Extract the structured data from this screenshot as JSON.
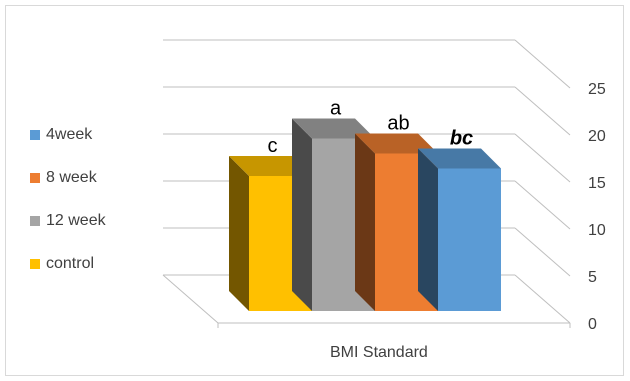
{
  "chart_data": {
    "type": "bar",
    "categories": [
      "BMI Standard"
    ],
    "xlabel": "BMI Standard",
    "ylim": [
      0,
      25
    ],
    "yticks": [
      0,
      5,
      10,
      15,
      20,
      25
    ],
    "grid": true,
    "legend_position": "left",
    "series": [
      {
        "name": "control",
        "values": [
          18
        ],
        "color": "#ffc000",
        "label": "c"
      },
      {
        "name": "12 week",
        "values": [
          23
        ],
        "color": "#a5a5a5",
        "label": "a"
      },
      {
        "name": "8 week",
        "values": [
          21
        ],
        "color": "#ed7d31",
        "label": "ab"
      },
      {
        "name": "4week",
        "values": [
          19
        ],
        "color": "#5b9bd5",
        "label": "bc"
      }
    ],
    "legend_order": [
      "4week",
      "8 week",
      "12 week",
      "control"
    ]
  }
}
